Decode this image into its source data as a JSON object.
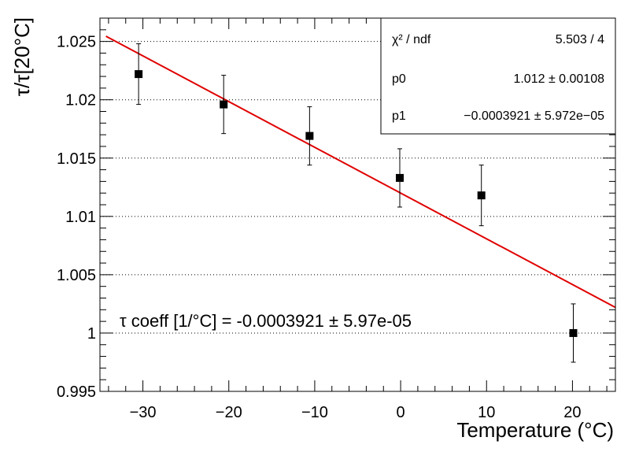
{
  "chart_data": {
    "type": "scatter",
    "xlabel": "Temperature (°C)",
    "ylabel": "τ/τ[20°C]",
    "xlim": [
      -35,
      25
    ],
    "ylim": [
      0.995,
      1.027
    ],
    "x_ticks": [
      -30,
      -20,
      -10,
      0,
      10,
      20
    ],
    "x_tick_labels": [
      "−30",
      "−20",
      "−10",
      "0",
      "10",
      "20"
    ],
    "y_ticks": [
      0.995,
      1,
      1.005,
      1.01,
      1.015,
      1.02,
      1.025
    ],
    "y_tick_labels": [
      "0.995",
      "1",
      "1.005",
      "1.01",
      "1.015",
      "1.02",
      "1.025"
    ],
    "grid_y": true,
    "points": [
      {
        "x": -30.5,
        "y": 1.0222,
        "err": 0.0026
      },
      {
        "x": -20.6,
        "y": 1.0196,
        "err": 0.0025
      },
      {
        "x": -10.6,
        "y": 1.0169,
        "err": 0.0025
      },
      {
        "x": -0.1,
        "y": 1.0133,
        "err": 0.0025
      },
      {
        "x": 9.4,
        "y": 1.0118,
        "err": 0.0026
      },
      {
        "x": 20.1,
        "y": 1.0,
        "err": 0.0025
      }
    ],
    "fit": {
      "p0": 1.012,
      "p1": -0.0003921,
      "color": "#e00000"
    },
    "stats_box": [
      {
        "label": "χ² / ndf",
        "value": "5.503 / 4"
      },
      {
        "label": "p0",
        "value": "1.012 ± 0.00108"
      },
      {
        "label": "p1",
        "value": "−0.0003921 ± 5.972e−05"
      }
    ],
    "annotation": "τ coeff [1/°C] = -0.0003921 ± 5.97e-05"
  }
}
